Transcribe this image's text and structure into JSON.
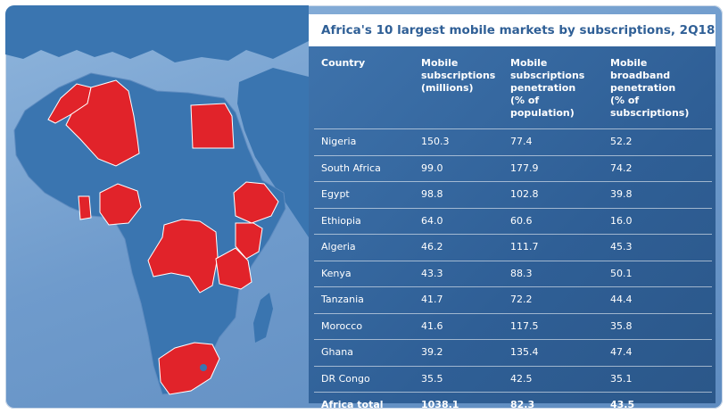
{
  "title": "Africa's 10 largest mobile markets by subscriptions, 2Q18",
  "columns": [
    "Country",
    "Mobile subscriptions (millions)",
    "Mobile subscriptions penetration (% of population)",
    "Mobile broadband penetration (% of subscriptions)"
  ],
  "column_lines": [
    [
      "Country"
    ],
    [
      "Mobile",
      "subscriptions",
      "(millions)"
    ],
    [
      "Mobile",
      "subscriptions",
      "penetration",
      "(% of population)"
    ],
    [
      "Mobile",
      "broadband",
      "penetration",
      "(% of subscriptions)"
    ]
  ],
  "rows": [
    {
      "country": "Nigeria",
      "subs": "150.3",
      "penetration": "77.4",
      "broadband": "52.2"
    },
    {
      "country": "South Africa",
      "subs": "99.0",
      "penetration": "177.9",
      "broadband": "74.2"
    },
    {
      "country": "Egypt",
      "subs": "98.8",
      "penetration": "102.8",
      "broadband": "39.8"
    },
    {
      "country": "Ethiopia",
      "subs": "64.0",
      "penetration": "60.6",
      "broadband": "16.0"
    },
    {
      "country": "Algeria",
      "subs": "46.2",
      "penetration": "111.7",
      "broadband": "45.3"
    },
    {
      "country": "Kenya",
      "subs": "43.3",
      "penetration": "88.3",
      "broadband": "50.1"
    },
    {
      "country": "Tanzania",
      "subs": "41.7",
      "penetration": "72.2",
      "broadband": "44.4"
    },
    {
      "country": "Morocco",
      "subs": "41.6",
      "penetration": "117.5",
      "broadband": "35.8"
    },
    {
      "country": "Ghana",
      "subs": "39.2",
      "penetration": "135.4",
      "broadband": "47.4"
    },
    {
      "country": "DR Congo",
      "subs": "35.5",
      "penetration": "42.5",
      "broadband": "35.1"
    }
  ],
  "total": {
    "country": "Africa total",
    "subs": "1038.1",
    "penetration": "82.3",
    "broadband": "43.5"
  },
  "map": {
    "highlighted_countries": [
      "Nigeria",
      "South Africa",
      "Egypt",
      "Ethiopia",
      "Algeria",
      "Kenya",
      "Tanzania",
      "Morocco",
      "Ghana",
      "DR Congo"
    ],
    "colors": {
      "land": "#3a75b0",
      "highlight": "#e1232a",
      "sea": "#8fb5dc",
      "title_text": "#2f5f96"
    }
  }
}
